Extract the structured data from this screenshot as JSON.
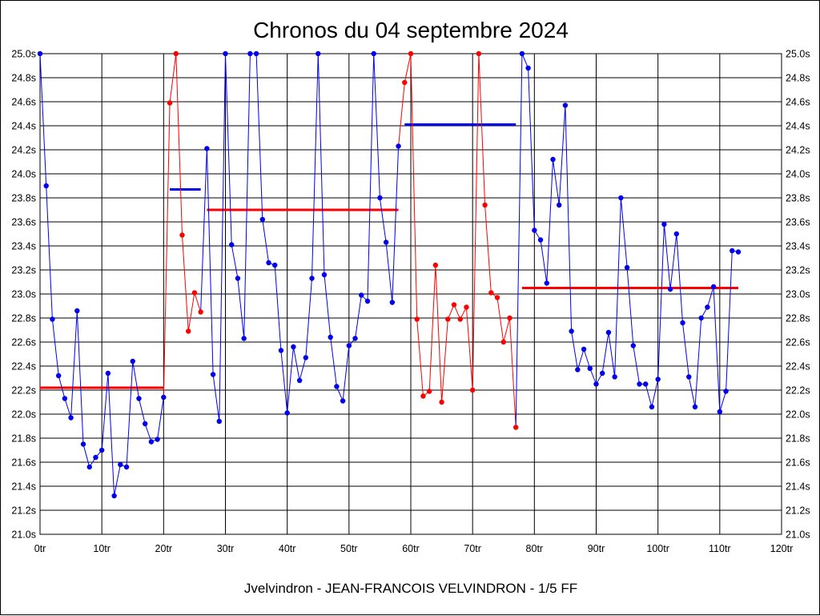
{
  "colors": {
    "blue": "#0000ee",
    "red": "#ff0000",
    "grid": "#000000",
    "background": "#ffffff"
  },
  "chart_data": {
    "type": "line",
    "title": "Chronos du 04 septembre 2024",
    "subtitle": "Jvelvindron - JEAN-FRANCOIS VELVINDRON - 1/5 FF",
    "xlim": [
      0,
      120
    ],
    "ylim": [
      21.0,
      25.0
    ],
    "grid": true,
    "x_ticks": [
      {
        "v": 0,
        "label": "0tr"
      },
      {
        "v": 10,
        "label": "10tr"
      },
      {
        "v": 20,
        "label": "20tr"
      },
      {
        "v": 30,
        "label": "30tr"
      },
      {
        "v": 40,
        "label": "40tr"
      },
      {
        "v": 50,
        "label": "50tr"
      },
      {
        "v": 60,
        "label": "60tr"
      },
      {
        "v": 70,
        "label": "70tr"
      },
      {
        "v": 80,
        "label": "80tr"
      },
      {
        "v": 90,
        "label": "90tr"
      },
      {
        "v": 100,
        "label": "100tr"
      },
      {
        "v": 110,
        "label": "110tr"
      },
      {
        "v": 120,
        "label": "120tr"
      }
    ],
    "y_ticks": [
      {
        "v": 21.0,
        "label": "21.0s"
      },
      {
        "v": 21.2,
        "label": "21.2s"
      },
      {
        "v": 21.4,
        "label": "21.4s"
      },
      {
        "v": 21.6,
        "label": "21.6s"
      },
      {
        "v": 21.8,
        "label": "21.8s"
      },
      {
        "v": 22.0,
        "label": "22.0s"
      },
      {
        "v": 22.2,
        "label": "22.2s"
      },
      {
        "v": 22.4,
        "label": "22.4s"
      },
      {
        "v": 22.6,
        "label": "22.6s"
      },
      {
        "v": 22.8,
        "label": "22.8s"
      },
      {
        "v": 23.0,
        "label": "23.0s"
      },
      {
        "v": 23.2,
        "label": "23.2s"
      },
      {
        "v": 23.4,
        "label": "23.4s"
      },
      {
        "v": 23.6,
        "label": "23.6s"
      },
      {
        "v": 23.8,
        "label": "23.8s"
      },
      {
        "v": 24.0,
        "label": "24.0s"
      },
      {
        "v": 24.2,
        "label": "24.2s"
      },
      {
        "v": 24.4,
        "label": "24.4s"
      },
      {
        "v": 24.6,
        "label": "24.6s"
      },
      {
        "v": 24.8,
        "label": "24.8s"
      },
      {
        "v": 25.0,
        "label": "25.0s"
      }
    ],
    "series": [
      {
        "color": "blue",
        "x": [
          0,
          1,
          2,
          3,
          4,
          5,
          6,
          7,
          8,
          9,
          10,
          11,
          12,
          13,
          14,
          15,
          16,
          17,
          18,
          19,
          20
        ],
        "y": [
          25.0,
          23.9,
          22.79,
          22.32,
          22.13,
          21.97,
          22.86,
          21.75,
          21.56,
          21.64,
          21.7,
          22.34,
          21.32,
          21.58,
          21.56,
          22.44,
          22.13,
          21.92,
          21.77,
          21.79,
          22.14
        ]
      },
      {
        "color": "red",
        "x": [
          21,
          22,
          23,
          24,
          25,
          26
        ],
        "y": [
          24.59,
          25.0,
          23.49,
          22.69,
          23.01,
          22.85
        ]
      },
      {
        "color": "blue",
        "x": [
          27,
          28,
          29,
          30,
          31,
          32,
          33,
          34,
          35,
          36,
          37,
          38,
          39,
          40,
          41,
          42,
          43,
          44,
          45,
          46,
          47,
          48,
          49,
          50,
          51,
          52,
          53,
          54,
          55,
          56,
          57,
          58
        ],
        "y": [
          24.21,
          22.33,
          21.94,
          25.0,
          23.41,
          23.13,
          22.63,
          25.0,
          25.0,
          23.62,
          23.26,
          23.24,
          22.53,
          22.01,
          22.56,
          22.28,
          22.47,
          23.13,
          25.0,
          23.16,
          22.64,
          22.23,
          22.11,
          22.57,
          22.63,
          22.99,
          22.94,
          25.0,
          23.8,
          23.43,
          22.93,
          24.23
        ]
      },
      {
        "color": "red",
        "x": [
          59,
          60,
          61,
          62,
          63,
          64,
          65,
          66,
          67,
          68,
          69,
          70,
          71,
          72,
          73,
          74,
          75,
          76,
          77
        ],
        "y": [
          24.76,
          25.0,
          22.79,
          22.15,
          22.19,
          23.24,
          22.1,
          22.79,
          22.91,
          22.79,
          22.89,
          22.2,
          25.0,
          23.74,
          23.01,
          22.97,
          22.6,
          22.8,
          21.89
        ]
      },
      {
        "color": "blue",
        "x": [
          78,
          79,
          80,
          81,
          82,
          83,
          84,
          85,
          86,
          87,
          88,
          89,
          90,
          91,
          92,
          93,
          94,
          95,
          96,
          97,
          98,
          99,
          100,
          101,
          102,
          103,
          104,
          105,
          106,
          107,
          108,
          109,
          110,
          111,
          112,
          113
        ],
        "y": [
          25.0,
          24.88,
          23.53,
          23.45,
          23.09,
          24.12,
          23.74,
          24.57,
          22.69,
          22.37,
          22.54,
          22.38,
          22.25,
          22.34,
          22.68,
          22.31,
          23.8,
          23.22,
          22.57,
          22.25,
          22.25,
          22.06,
          22.29,
          23.58,
          23.04,
          23.5,
          22.76,
          22.31,
          22.06,
          22.8,
          22.89,
          23.06,
          22.02,
          22.19,
          23.36,
          23.35
        ]
      }
    ],
    "avg_lines": [
      {
        "color": "red",
        "x1": 0,
        "x2": 20,
        "y": 22.22
      },
      {
        "color": "blue",
        "x1": 21,
        "x2": 26,
        "y": 23.87
      },
      {
        "color": "red",
        "x1": 27,
        "x2": 58,
        "y": 23.7
      },
      {
        "color": "blue",
        "x1": 59,
        "x2": 77,
        "y": 24.41
      },
      {
        "color": "red",
        "x1": 78,
        "x2": 113,
        "y": 23.05
      }
    ]
  }
}
